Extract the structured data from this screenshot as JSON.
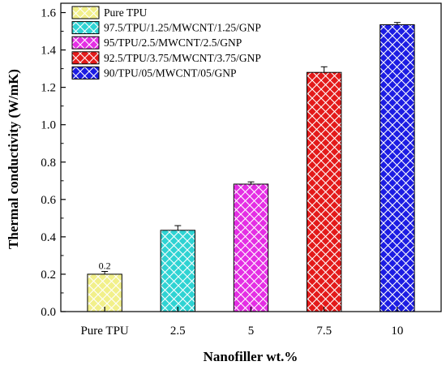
{
  "chart_data": {
    "type": "bar",
    "xlabel": "Nanofiller wt.%",
    "ylabel": "Thermal conductivity (W/mK)",
    "ylim": [
      0.0,
      1.65
    ],
    "yticks": [
      "0.0",
      "0.2",
      "0.4",
      "0.6",
      "0.8",
      "1.0",
      "1.2",
      "1.4",
      "1.6"
    ],
    "categories": [
      "Pure TPU",
      "2.5",
      "5",
      "7.5",
      "10"
    ],
    "values": [
      0.2,
      0.435,
      0.682,
      1.28,
      1.535
    ],
    "errors": [
      0.015,
      0.025,
      0.012,
      0.03,
      0.012
    ],
    "series_names": [
      "Pure TPU",
      "97.5/TPU/1.25/MWCNT/1.25/GNP",
      "95/TPU/2.5/MWCNT/2.5/GNP",
      "92.5/TPU/3.75/MWCNT/3.75/GNP",
      "90/TPU/05/MWCNT/05/GNP"
    ],
    "colors": [
      "#f2f08a",
      "#2fd3d3",
      "#e42ee4",
      "#e31a1a",
      "#1c1ce3"
    ],
    "data_labels": [
      "0.2",
      "",
      "",
      "",
      ""
    ],
    "pattern": "crosshatch",
    "legend_position": "top-left",
    "grid": false
  }
}
